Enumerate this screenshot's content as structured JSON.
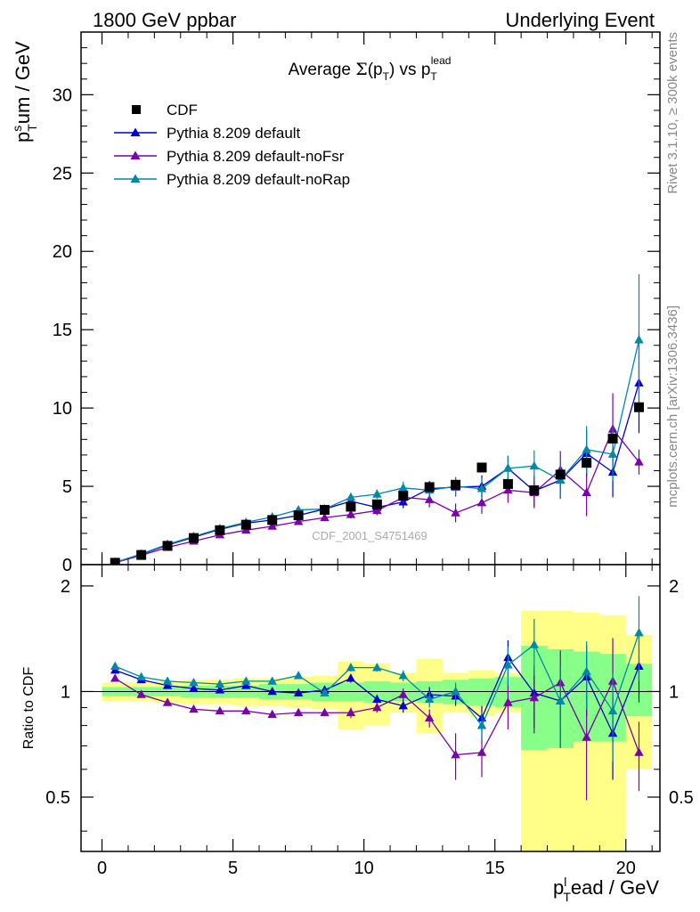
{
  "header": {
    "left": "1800 GeV ppbar",
    "right": "Underlying Event"
  },
  "side_labels": {
    "rivet": "Rivet 3.1.10, ≥ 300k events",
    "mcplots": "mcplots.cern.ch [arXiv:1306.3436]"
  },
  "colors": {
    "cdf": "#000000",
    "default": "#0000cc",
    "noFsr": "#7a00a8",
    "noRap": "#0088aa",
    "band_outer": "#ffff88",
    "band_inner": "#88ff88"
  },
  "chart_data": [
    {
      "type": "scatter",
      "title": "Average Σ(p_T) vs p_T^lead",
      "ylabel": "p_T^sum / GeV",
      "xlim": [
        -0.8,
        21.3
      ],
      "ylim": [
        0,
        34
      ],
      "yticks": [
        0,
        5,
        10,
        15,
        20,
        25,
        30
      ],
      "watermark": "CDF_2001_S4751469",
      "x": [
        0.5,
        1.5,
        2.5,
        3.5,
        4.5,
        5.5,
        6.5,
        7.5,
        8.5,
        9.5,
        10.5,
        11.5,
        12.5,
        13.5,
        14.5,
        15.5,
        16.5,
        17.5,
        18.5,
        19.5,
        20.5
      ],
      "series": [
        {
          "name": "CDF",
          "marker": "square",
          "color": "#000000",
          "values": [
            0.12,
            0.62,
            1.2,
            1.7,
            2.2,
            2.55,
            2.85,
            3.15,
            3.5,
            3.7,
            3.85,
            4.4,
            4.95,
            5.1,
            6.2,
            5.15,
            4.75,
            5.75,
            6.5,
            8.05,
            10.05
          ]
        },
        {
          "name": "Pythia 8.209 default",
          "marker": "triangle",
          "color": "#0000cc",
          "values": [
            0.14,
            0.66,
            1.25,
            1.75,
            2.25,
            2.65,
            2.85,
            3.15,
            3.55,
            4.05,
            3.65,
            4.0,
            4.85,
            4.95,
            5.0,
            6.15,
            4.7,
            5.4,
            7.1,
            5.9,
            11.6
          ],
          "errors": [
            0.02,
            0.03,
            0.05,
            0.06,
            0.08,
            0.1,
            0.12,
            0.15,
            0.2,
            0.25,
            0.3,
            0.4,
            0.5,
            0.6,
            0.7,
            0.8,
            1.0,
            1.2,
            1.5,
            1.6,
            3.2
          ]
        },
        {
          "name": "Pythia 8.209 default-noFsr",
          "marker": "triangle",
          "color": "#7a00a8",
          "values": [
            0.13,
            0.6,
            1.1,
            1.5,
            1.9,
            2.2,
            2.45,
            2.75,
            3.0,
            3.2,
            3.45,
            4.3,
            4.15,
            3.3,
            3.95,
            4.75,
            4.6,
            6.05,
            4.6,
            8.65,
            6.55
          ],
          "errors": [
            0.02,
            0.03,
            0.05,
            0.06,
            0.08,
            0.1,
            0.12,
            0.15,
            0.2,
            0.25,
            0.3,
            0.4,
            0.5,
            0.6,
            0.7,
            0.8,
            1.0,
            1.2,
            1.5,
            2.3,
            0.8
          ]
        },
        {
          "name": "Pythia 8.209 default-noRap",
          "marker": "triangle",
          "color": "#0088aa",
          "values": [
            0.15,
            0.68,
            1.3,
            1.8,
            2.3,
            2.7,
            3.05,
            3.5,
            3.55,
            4.3,
            4.5,
            4.9,
            4.75,
            5.0,
            4.85,
            6.15,
            6.3,
            5.4,
            7.35,
            7.05,
            14.35
          ],
          "errors": [
            0.02,
            0.03,
            0.05,
            0.06,
            0.08,
            0.1,
            0.12,
            0.15,
            0.2,
            0.25,
            0.3,
            0.4,
            0.5,
            0.6,
            0.7,
            0.8,
            1.0,
            1.2,
            1.5,
            1.7,
            4.2
          ]
        }
      ]
    },
    {
      "type": "scatter",
      "title": "",
      "xlabel": "p_T^lead / GeV",
      "ylabel": "Ratio to CDF",
      "xlim": [
        -0.8,
        21.3
      ],
      "ylim": [
        0.35,
        2.3
      ],
      "yticks": [
        0.5,
        1,
        2
      ],
      "xticks": [
        0,
        5,
        10,
        15,
        20
      ],
      "reference_line": 1,
      "x": [
        0.5,
        1.5,
        2.5,
        3.5,
        4.5,
        5.5,
        6.5,
        7.5,
        8.5,
        9.5,
        10.5,
        11.5,
        12.5,
        13.5,
        14.5,
        15.5,
        16.5,
        17.5,
        18.5,
        19.5,
        20.5
      ],
      "band_edges": [
        0,
        1,
        2,
        3,
        4,
        5,
        6,
        7,
        8,
        9,
        10,
        11,
        12,
        13,
        14,
        15,
        16,
        17,
        18,
        19,
        20,
        21
      ],
      "band_outer": [
        [
          0.94,
          1.06
        ],
        [
          0.94,
          1.06
        ],
        [
          0.93,
          1.07
        ],
        [
          0.92,
          1.08
        ],
        [
          0.92,
          1.08
        ],
        [
          0.91,
          1.09
        ],
        [
          0.91,
          1.09
        ],
        [
          0.9,
          1.1
        ],
        [
          0.89,
          1.11
        ],
        [
          0.78,
          1.22
        ],
        [
          0.8,
          1.2
        ],
        [
          0.87,
          1.13
        ],
        [
          0.76,
          1.24
        ],
        [
          0.87,
          1.13
        ],
        [
          0.85,
          1.15
        ],
        [
          0.87,
          1.13
        ],
        [
          0.35,
          1.7
        ],
        [
          0.35,
          1.7
        ],
        [
          0.35,
          1.68
        ],
        [
          0.35,
          1.65
        ],
        [
          0.6,
          1.45
        ]
      ],
      "band_inner": [
        [
          0.97,
          1.03
        ],
        [
          0.97,
          1.03
        ],
        [
          0.97,
          1.03
        ],
        [
          0.96,
          1.04
        ],
        [
          0.96,
          1.04
        ],
        [
          0.96,
          1.04
        ],
        [
          0.95,
          1.05
        ],
        [
          0.95,
          1.05
        ],
        [
          0.94,
          1.06
        ],
        [
          0.94,
          1.06
        ],
        [
          0.93,
          1.07
        ],
        [
          0.94,
          1.06
        ],
        [
          0.93,
          1.07
        ],
        [
          0.92,
          1.08
        ],
        [
          0.91,
          1.09
        ],
        [
          0.9,
          1.1
        ],
        [
          0.68,
          1.35
        ],
        [
          0.69,
          1.32
        ],
        [
          0.72,
          1.3
        ],
        [
          0.72,
          1.28
        ],
        [
          0.85,
          1.2
        ]
      ],
      "series": [
        {
          "name": "Pythia 8.209 default",
          "color": "#0000cc",
          "values": [
            1.15,
            1.08,
            1.04,
            1.02,
            1.01,
            1.04,
            1.0,
            0.99,
            1.01,
            1.09,
            0.95,
            0.91,
            0.98,
            0.97,
            0.84,
            1.25,
            0.99,
            0.94,
            1.1,
            0.76,
            1.18
          ],
          "errors": [
            0.01,
            0.01,
            0.01,
            0.01,
            0.01,
            0.01,
            0.02,
            0.02,
            0.02,
            0.03,
            0.03,
            0.04,
            0.05,
            0.06,
            0.07,
            0.15,
            0.2,
            0.25,
            0.25,
            0.2,
            0.25
          ]
        },
        {
          "name": "Pythia 8.209 default-noFsr",
          "color": "#7a00a8",
          "values": [
            1.09,
            0.98,
            0.93,
            0.89,
            0.88,
            0.88,
            0.86,
            0.87,
            0.87,
            0.87,
            0.9,
            0.98,
            0.84,
            0.66,
            0.67,
            0.93,
            0.96,
            1.06,
            0.74,
            1.07,
            0.67
          ],
          "errors": [
            0.01,
            0.01,
            0.01,
            0.01,
            0.01,
            0.01,
            0.02,
            0.02,
            0.02,
            0.03,
            0.03,
            0.04,
            0.05,
            0.1,
            0.1,
            0.15,
            0.2,
            0.25,
            0.25,
            0.35,
            0.15
          ]
        },
        {
          "name": "Pythia 8.209 default-noRap",
          "color": "#0088aa",
          "values": [
            1.18,
            1.1,
            1.07,
            1.06,
            1.05,
            1.07,
            1.07,
            1.11,
            0.99,
            1.17,
            1.17,
            1.11,
            0.95,
            1.0,
            0.8,
            1.19,
            1.36,
            0.94,
            1.14,
            0.88,
            1.47
          ],
          "errors": [
            0.01,
            0.01,
            0.01,
            0.01,
            0.01,
            0.01,
            0.02,
            0.02,
            0.02,
            0.03,
            0.03,
            0.04,
            0.05,
            0.06,
            0.07,
            0.15,
            0.25,
            0.25,
            0.25,
            0.25,
            0.4
          ]
        }
      ]
    }
  ]
}
